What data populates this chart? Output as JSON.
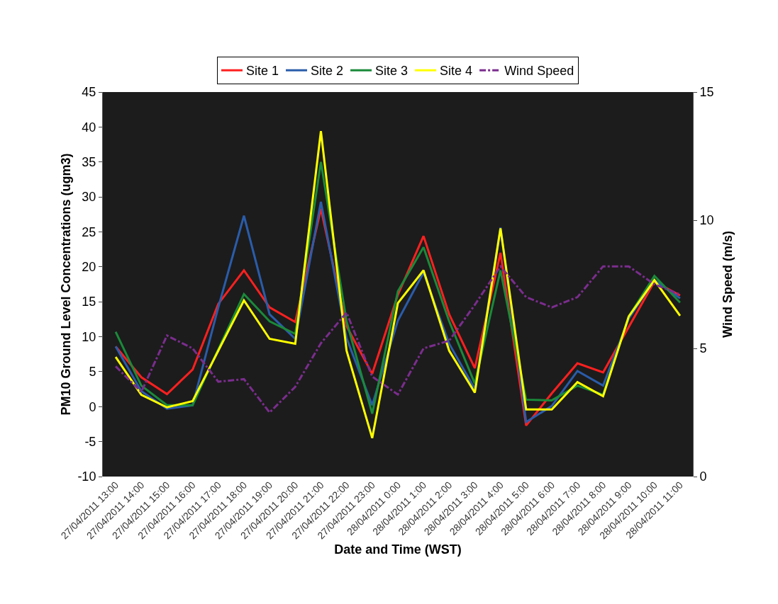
{
  "chart_data": {
    "type": "line",
    "xlabel": "Date and Time (WST)",
    "ylabel": "PM10 Ground Level Concentrations (ugm3)",
    "y2label": "Wind Speed (m/s)",
    "categories": [
      "27/04/2011 13:00",
      "27/04/2011 14:00",
      "27/04/2011 15:00",
      "27/04/2011 16:00",
      "27/04/2011 17:00",
      "27/04/2011 18:00",
      "27/04/2011 19:00",
      "27/04/2011 20:00",
      "27/04/2011 21:00",
      "27/04/2011 22:00",
      "27/04/2011 23:00",
      "28/04/2011 0:00",
      "28/04/2011 1:00",
      "28/04/2011 2:00",
      "28/04/2011 3:00",
      "28/04/2011 4:00",
      "28/04/2011 5:00",
      "28/04/2011 6:00",
      "28/04/2011 7:00",
      "28/04/2011 8:00",
      "28/04/2011 9:00",
      "28/04/2011 10:00",
      "28/04/2011 11:00"
    ],
    "series": [
      {
        "name": "Site 1",
        "color": "#ff2020",
        "values": [
          8.6,
          4.2,
          1.8,
          5.3,
          14.7,
          19.5,
          14.2,
          12.1,
          28.3,
          11.5,
          4.7,
          16,
          24.4,
          13.2,
          5.5,
          22,
          -2.7,
          1.9,
          6.2,
          4.9,
          11.4,
          17.9,
          15.9
        ]
      },
      {
        "name": "Site 2",
        "color": "#2a5caa",
        "values": [
          8.6,
          2.2,
          -0.3,
          0.2,
          14.2,
          27.3,
          13.2,
          9.7,
          29.3,
          9.8,
          0.2,
          12.3,
          19.2,
          9,
          2.5,
          25.6,
          -2.2,
          0.1,
          5.1,
          3,
          12.6,
          18.1,
          15.5
        ]
      },
      {
        "name": "Site 3",
        "color": "#1a8a3a",
        "values": [
          10.7,
          3,
          0.2,
          0.2,
          8.2,
          16.1,
          12.2,
          10.4,
          35,
          12.2,
          -1,
          16.5,
          22.8,
          12.2,
          3.3,
          19.5,
          1,
          0.9,
          3,
          1.7,
          12.9,
          18.7,
          14.9
        ]
      },
      {
        "name": "Site 4",
        "color": "#ffff00",
        "values": [
          7.1,
          1.7,
          -0.1,
          0.8,
          8,
          15.2,
          9.7,
          9,
          39.4,
          8,
          -4.5,
          14.8,
          19.5,
          8,
          2,
          25.5,
          -0.4,
          -0.4,
          3.5,
          1.5,
          12.9,
          18.1,
          13
        ]
      },
      {
        "name": "Wind Speed",
        "color": "#7b2d8e",
        "axis": "y2",
        "line_style": "dashed",
        "values": [
          4.3,
          3.3,
          5.5,
          5,
          3.7,
          3.8,
          2.5,
          3.5,
          5.2,
          6.4,
          3.9,
          3.2,
          5,
          5.3,
          6.7,
          8.2,
          7,
          6.6,
          7,
          8.2,
          8.2,
          7.5,
          7.1
        ]
      }
    ],
    "ylim": [
      -10,
      45
    ],
    "yticks": [
      -10,
      -5,
      0,
      5,
      10,
      15,
      20,
      25,
      30,
      35,
      40,
      45
    ],
    "y2lim": [
      0,
      15
    ],
    "y2ticks": [
      0,
      5,
      10,
      15
    ],
    "grid": false,
    "legend": "top",
    "marker": "none",
    "line_style": "solid"
  }
}
